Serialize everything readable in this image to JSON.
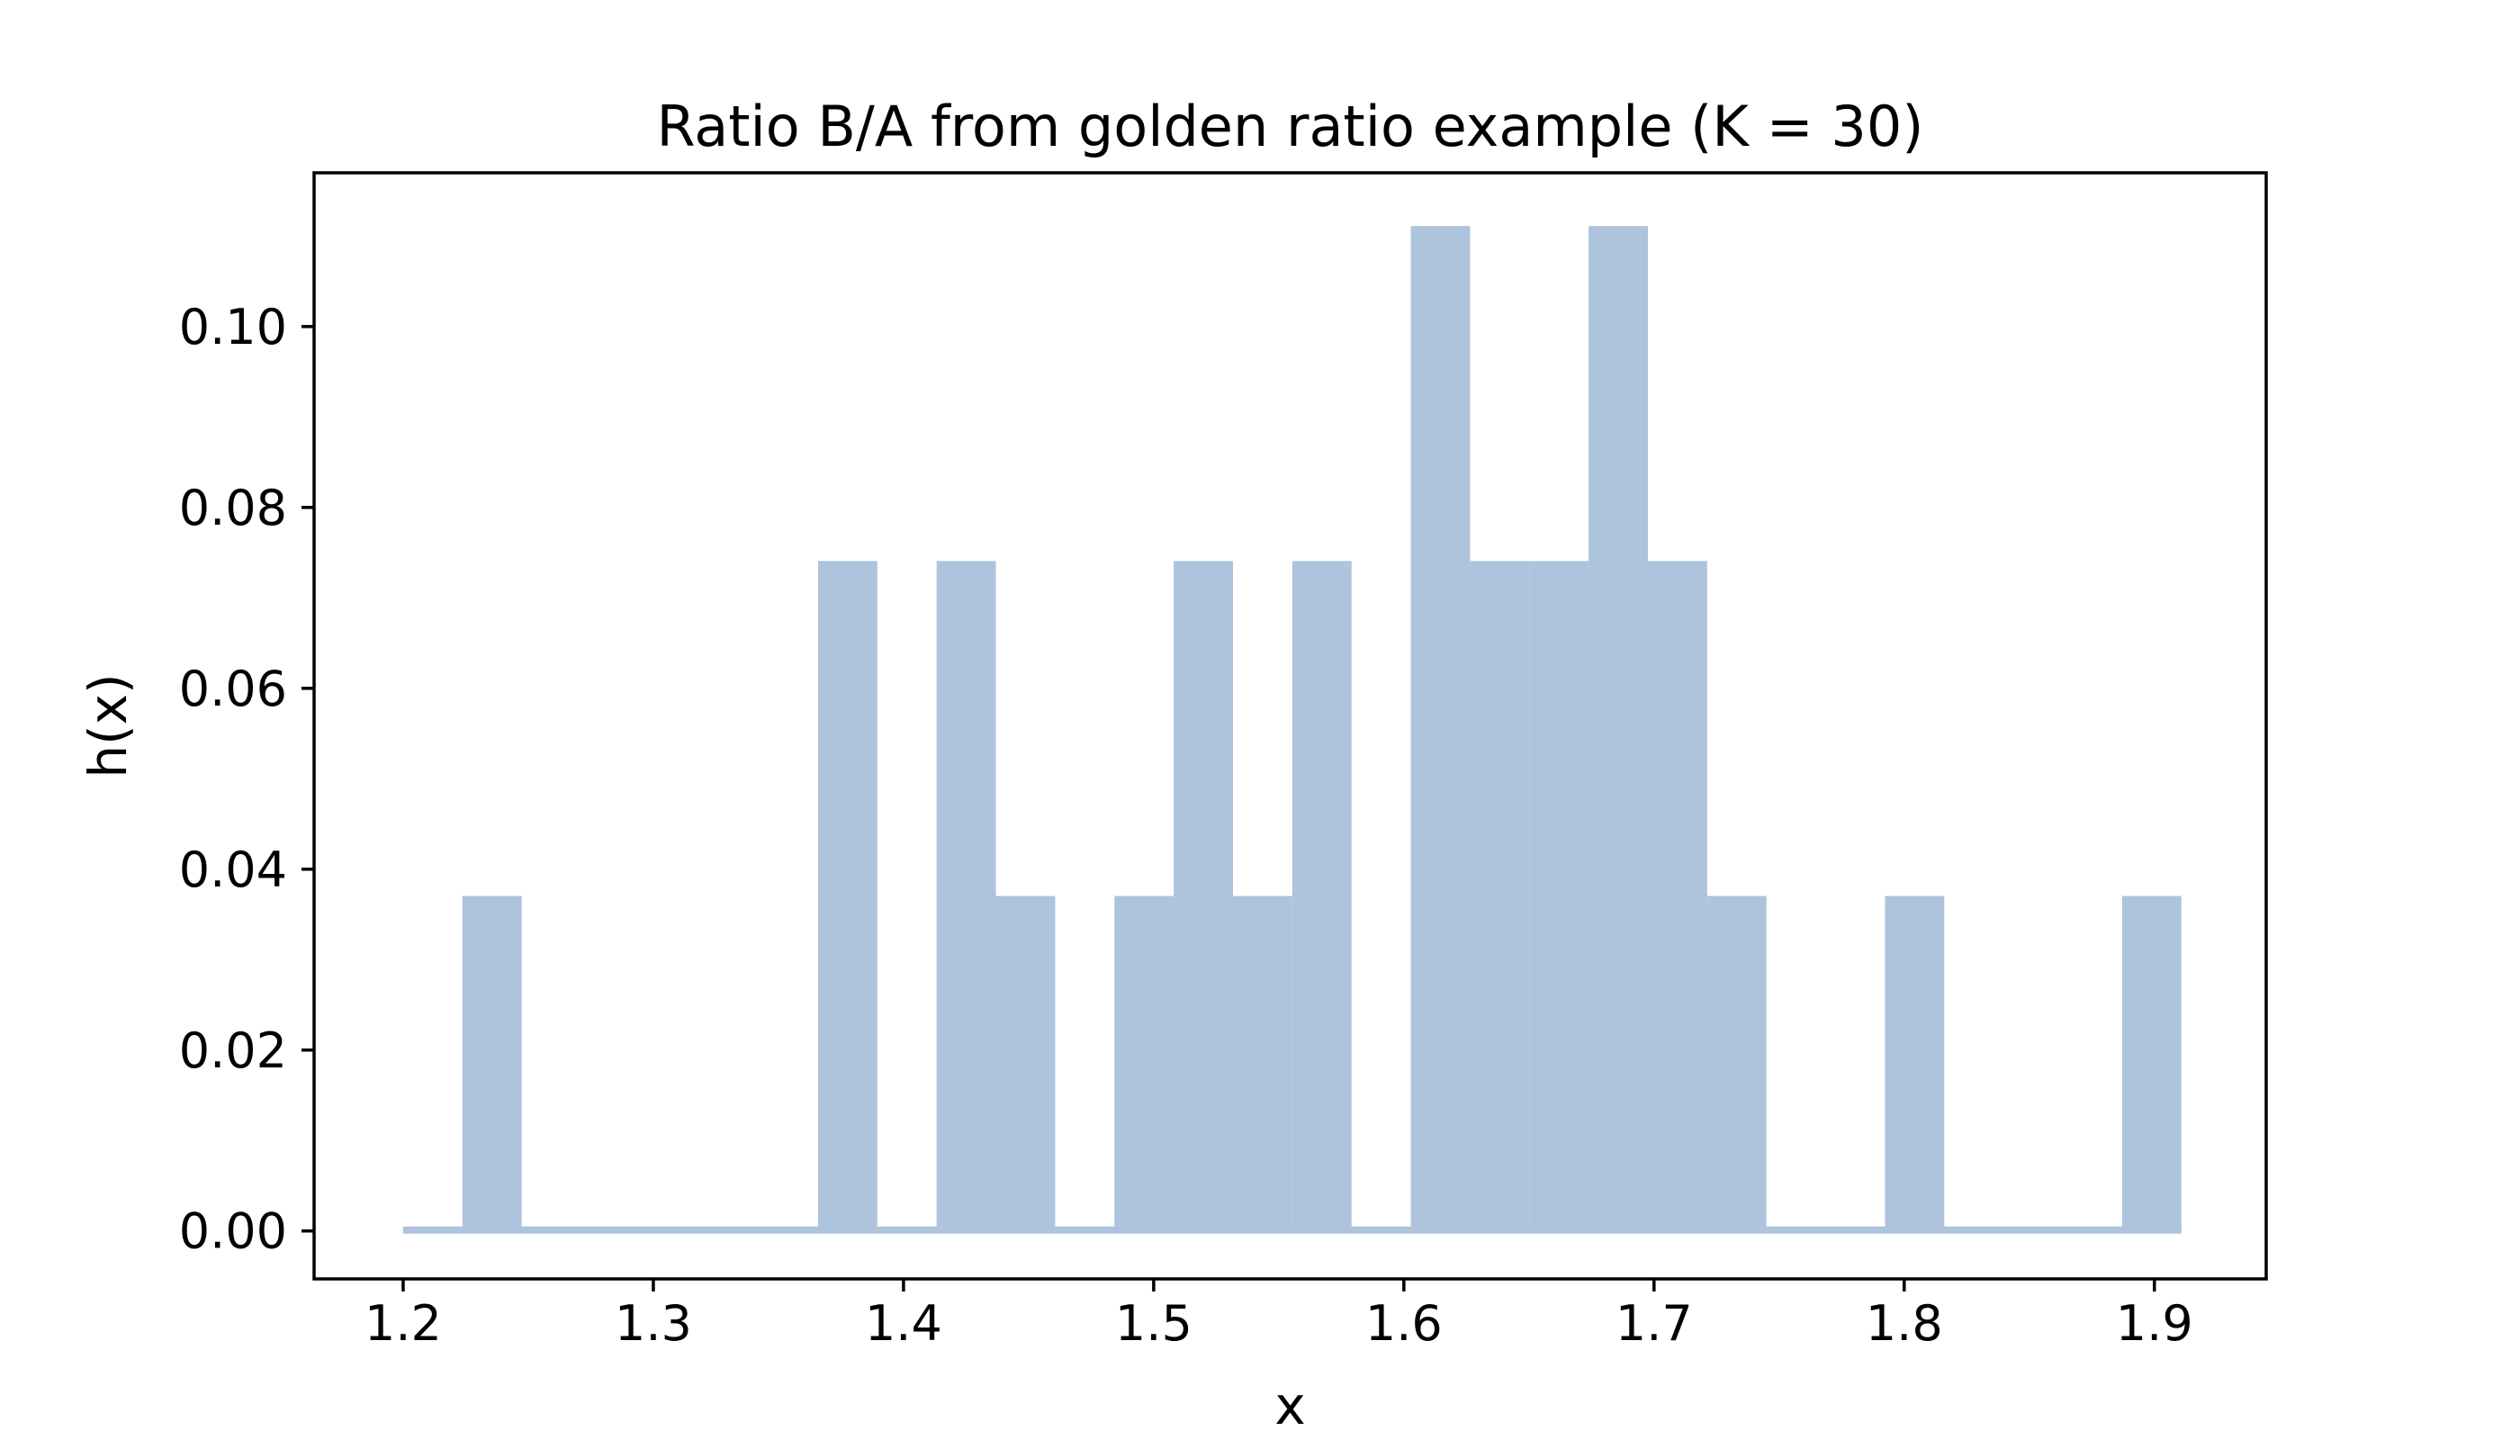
{
  "figure": {
    "background_color": "#ffffff"
  },
  "chart_data": {
    "type": "bar",
    "subtype": "histogram",
    "title": "Ratio B/A from golden ratio example (K = 30)",
    "xlabel": "x",
    "ylabel": "h(x)",
    "bin_start": 1.2,
    "bin_width": 0.023693,
    "n_bins": 30,
    "bin_counts": [
      0,
      1,
      0,
      0,
      0,
      0,
      0,
      2,
      0,
      2,
      1,
      0,
      1,
      2,
      1,
      2,
      0,
      3,
      2,
      2,
      3,
      2,
      1,
      0,
      0,
      1,
      0,
      0,
      0,
      1
    ],
    "total_count": 27,
    "bar_height_values": [
      0.037,
      0.074,
      0.111
    ],
    "xtick_values": [
      1.2,
      1.3,
      1.4,
      1.5,
      1.6,
      1.7,
      1.8,
      1.9
    ],
    "xtick_labels": [
      "1.2",
      "1.3",
      "1.4",
      "1.5",
      "1.6",
      "1.7",
      "1.8",
      "1.9"
    ],
    "ytick_values": [
      0.0,
      0.02,
      0.04,
      0.06,
      0.08,
      0.1
    ],
    "ytick_labels": [
      "0.00",
      "0.02",
      "0.04",
      "0.06",
      "0.08",
      "0.10"
    ],
    "xlim": [
      1.1644,
      1.9447
    ],
    "ylim": [
      -0.0053,
      0.117
    ],
    "grid": false,
    "legend": null,
    "bar_color": "#aec3dc",
    "spine_color": "#000000",
    "text_color": "#000000",
    "baseline_strip": true
  }
}
